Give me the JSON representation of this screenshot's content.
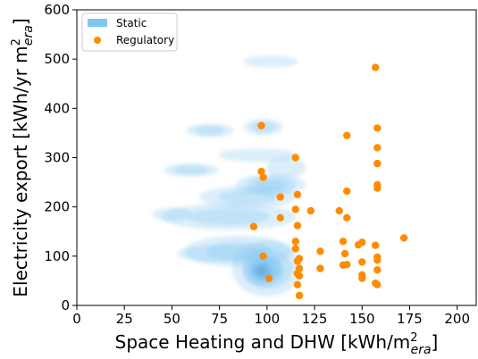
{
  "chart_data": {
    "type": "scatter",
    "xlabel": "Space Heating and DHW [kWh/m",
    "xlabel_sup": "2",
    "xlabel_sub": "era",
    "xlabel_end": "]",
    "ylabel": "Electricity export [kWh/yr m",
    "ylabel_sup": "2",
    "ylabel_sub": "era",
    "ylabel_end": "]",
    "xlim": [
      0,
      210
    ],
    "ylim": [
      0,
      600
    ],
    "xticks": [
      0,
      25,
      50,
      75,
      100,
      125,
      150,
      175,
      200
    ],
    "yticks": [
      0,
      100,
      200,
      300,
      400,
      500,
      600
    ],
    "legend_position": "top-left",
    "colors": {
      "static": "#7fc6f0",
      "static_dark": "#5aa8e6",
      "core": "#8a9fb4",
      "regulatory": "#ff8c00"
    },
    "series": [
      {
        "name": "Static",
        "kind": "density",
        "regions": [
          {
            "cx": 100,
            "cy": 75,
            "rx": 18,
            "ry": 55,
            "level": 3
          },
          {
            "cx": 98,
            "cy": 70,
            "rx": 10,
            "ry": 30,
            "level": 5
          },
          {
            "cx": 97,
            "cy": 70,
            "rx": 5,
            "ry": 14,
            "level": 7
          },
          {
            "cx": 85,
            "cy": 110,
            "rx": 28,
            "ry": 30,
            "level": 2
          },
          {
            "cx": 75,
            "cy": 105,
            "rx": 22,
            "ry": 15,
            "level": 1
          },
          {
            "cx": 80,
            "cy": 180,
            "rx": 35,
            "ry": 25,
            "level": 2
          },
          {
            "cx": 90,
            "cy": 220,
            "rx": 25,
            "ry": 20,
            "level": 2
          },
          {
            "cx": 102,
            "cy": 245,
            "rx": 18,
            "ry": 20,
            "level": 3
          },
          {
            "cx": 60,
            "cy": 275,
            "rx": 14,
            "ry": 12,
            "level": 2
          },
          {
            "cx": 95,
            "cy": 305,
            "rx": 20,
            "ry": 12,
            "level": 1
          },
          {
            "cx": 70,
            "cy": 355,
            "rx": 12,
            "ry": 12,
            "level": 2
          },
          {
            "cx": 98,
            "cy": 362,
            "rx": 10,
            "ry": 15,
            "level": 2
          },
          {
            "cx": 102,
            "cy": 495,
            "rx": 14,
            "ry": 10,
            "level": 1
          },
          {
            "cx": 50,
            "cy": 185,
            "rx": 10,
            "ry": 12,
            "level": 1
          },
          {
            "cx": 110,
            "cy": 280,
            "rx": 10,
            "ry": 20,
            "level": 1
          }
        ]
      },
      {
        "name": "Regulatory",
        "kind": "points",
        "points": [
          [
            97,
            365
          ],
          [
            97,
            272
          ],
          [
            98,
            260
          ],
          [
            107,
            178
          ],
          [
            107,
            220
          ],
          [
            93,
            160
          ],
          [
            98,
            100
          ],
          [
            101,
            55
          ],
          [
            115,
            300
          ],
          [
            116,
            225
          ],
          [
            115,
            195
          ],
          [
            116,
            162
          ],
          [
            115,
            130
          ],
          [
            115,
            115
          ],
          [
            117,
            95
          ],
          [
            116,
            90
          ],
          [
            117,
            75
          ],
          [
            116,
            65
          ],
          [
            117,
            60
          ],
          [
            116,
            42
          ],
          [
            117,
            20
          ],
          [
            123,
            192
          ],
          [
            128,
            110
          ],
          [
            128,
            75
          ],
          [
            138,
            192
          ],
          [
            140,
            130
          ],
          [
            140,
            82
          ],
          [
            141,
            105
          ],
          [
            142,
            345
          ],
          [
            142,
            232
          ],
          [
            142,
            178
          ],
          [
            142,
            83
          ],
          [
            148,
            123
          ],
          [
            150,
            128
          ],
          [
            150,
            88
          ],
          [
            150,
            62
          ],
          [
            150,
            55
          ],
          [
            157,
            483
          ],
          [
            158,
            360
          ],
          [
            158,
            320
          ],
          [
            158,
            288
          ],
          [
            158,
            245
          ],
          [
            158,
            238
          ],
          [
            157,
            122
          ],
          [
            158,
            98
          ],
          [
            158,
            92
          ],
          [
            158,
            72
          ],
          [
            157,
            45
          ],
          [
            158,
            42
          ],
          [
            172,
            137
          ]
        ]
      }
    ]
  }
}
